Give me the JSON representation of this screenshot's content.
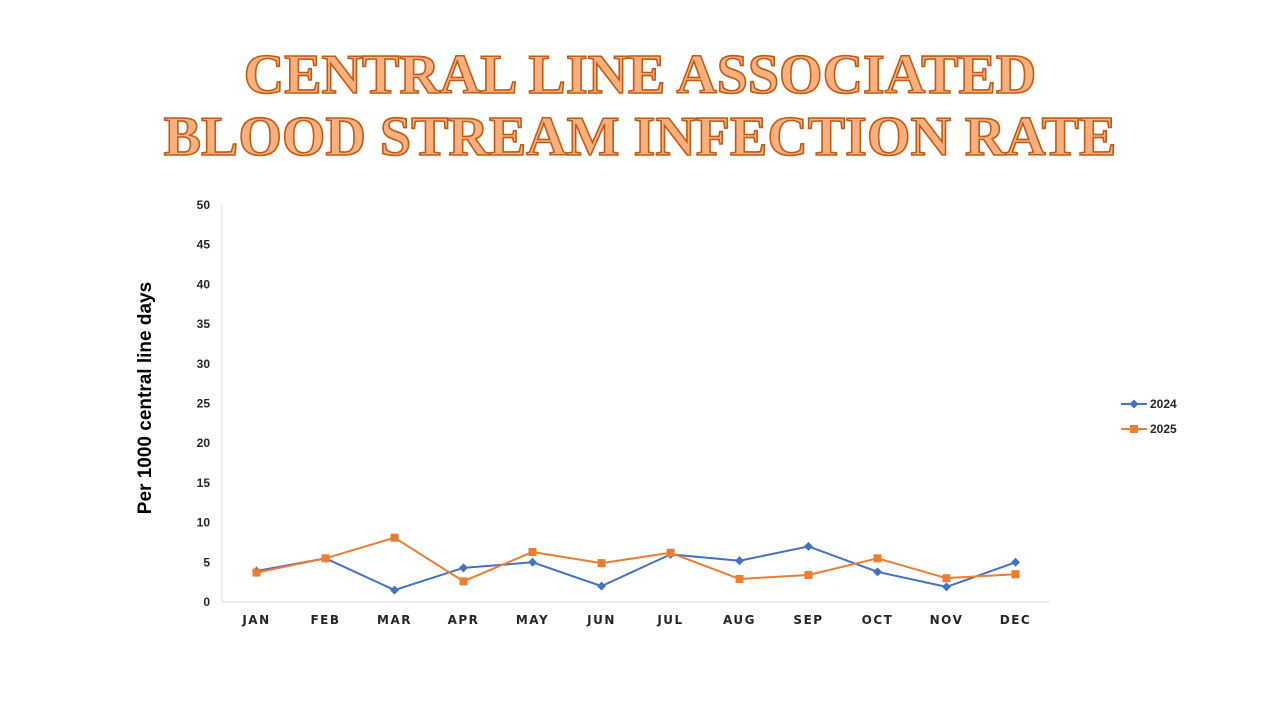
{
  "title": {
    "line1": "CENTRAL LINE ASSOCIATED",
    "line2": "BLOOD STREAM INFECTION RATE"
  },
  "colors": {
    "title_fill": "#f7b07e",
    "title_stroke": "#c55a11",
    "series_2024": "#4472c4",
    "series_2025": "#ed7d31",
    "axis": "#d9d9d9"
  },
  "chart_data": {
    "type": "line",
    "title": "CENTRAL LINE ASSOCIATED BLOOD STREAM INFECTION RATE",
    "xlabel": "",
    "ylabel": "Per 1000 central line days",
    "categories": [
      "JAN",
      "FEB",
      "MAR",
      "APR",
      "MAY",
      "JUN",
      "JUL",
      "AUG",
      "SEP",
      "OCT",
      "NOV",
      "DEC"
    ],
    "ylim": [
      0,
      50
    ],
    "yticks": [
      0,
      5,
      10,
      15,
      20,
      25,
      30,
      35,
      40,
      45,
      50
    ],
    "grid": false,
    "legend": "right",
    "series": [
      {
        "name": "2024",
        "marker": "diamond",
        "color": "#4472c4",
        "values": [
          3.9,
          5.5,
          1.5,
          4.3,
          5.0,
          2.0,
          6.0,
          5.2,
          7.0,
          3.8,
          1.9,
          5.0
        ]
      },
      {
        "name": "2025",
        "marker": "square",
        "color": "#ed7d31",
        "values": [
          3.7,
          5.5,
          8.1,
          2.6,
          6.3,
          4.9,
          6.2,
          2.9,
          3.4,
          5.5,
          3.0,
          3.5
        ]
      }
    ]
  }
}
